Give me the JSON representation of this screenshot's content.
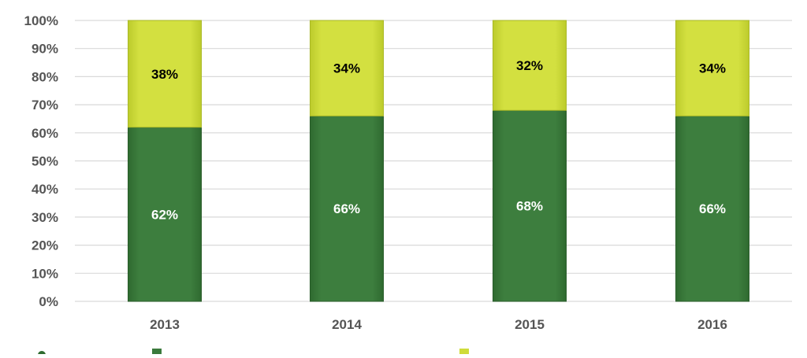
{
  "chart_data": {
    "type": "bar",
    "stacked": true,
    "categories": [
      "2013",
      "2014",
      "2015",
      "2016"
    ],
    "series": [
      {
        "values": [
          62,
          66,
          68,
          66
        ],
        "labels": [
          "62%",
          "66%",
          "68%",
          "66%"
        ],
        "color": "#3b7a3c",
        "label_color": "#ffffff"
      },
      {
        "values": [
          38,
          34,
          32,
          34
        ],
        "labels": [
          "38%",
          "34%",
          "32%",
          "34%"
        ],
        "color": "#cfdc3a",
        "label_color": "#000000"
      }
    ],
    "yticks": [
      "0%",
      "10%",
      "20%",
      "30%",
      "40%",
      "50%",
      "60%",
      "70%",
      "80%",
      "90%",
      "100%"
    ],
    "ylim": [
      0,
      100
    ],
    "grid": true,
    "legend_position": "bottom",
    "gridline_color": "#d9d9d9",
    "legend_dot_color": "#2e6b2f"
  }
}
